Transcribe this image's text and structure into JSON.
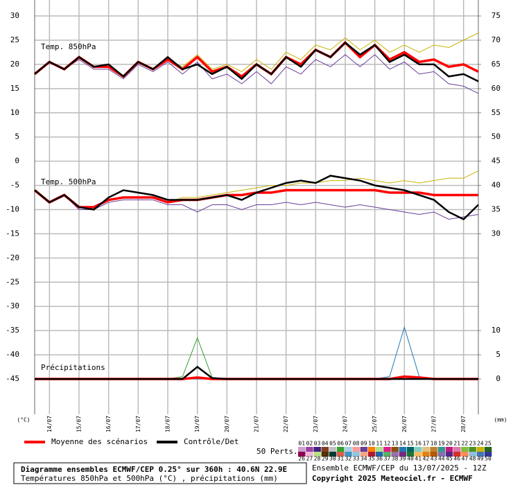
{
  "chart_data": {
    "type": "line",
    "x": [
      0,
      12,
      24,
      36,
      48,
      60,
      72,
      84,
      96,
      108,
      120,
      132,
      144,
      156,
      168,
      180,
      192,
      204,
      216,
      228,
      240,
      252,
      264,
      276,
      288,
      300,
      312,
      324,
      336,
      348,
      360
    ],
    "xlim": [
      0,
      360
    ],
    "xticks": [
      {
        "value": 12,
        "label": "14/07"
      },
      {
        "value": 36,
        "label": "15/07"
      },
      {
        "value": 60,
        "label": "16/07"
      },
      {
        "value": 84,
        "label": "17/07"
      },
      {
        "value": 108,
        "label": "18/07"
      },
      {
        "value": 132,
        "label": "19/07"
      },
      {
        "value": 156,
        "label": "20/07"
      },
      {
        "value": 180,
        "label": "21/07"
      },
      {
        "value": 204,
        "label": "22/07"
      },
      {
        "value": 228,
        "label": "23/07"
      },
      {
        "value": 252,
        "label": "24/07"
      },
      {
        "value": 276,
        "label": "25/07"
      },
      {
        "value": 300,
        "label": "26/07"
      },
      {
        "value": 324,
        "label": "27/07"
      },
      {
        "value": 348,
        "label": "28/07"
      }
    ],
    "ylim": [
      -52.3,
      33.3
    ],
    "yticks": [
      30,
      25,
      20,
      15,
      10,
      5,
      0,
      -5,
      -10,
      -15,
      -20,
      -25,
      -30,
      -35,
      -40,
      -45
    ],
    "y2lim": [
      -7.3,
      78.3
    ],
    "y2ticks": [
      75,
      70,
      65,
      60,
      55,
      50,
      45,
      40,
      35,
      30,
      10,
      5,
      0
    ],
    "ylabel": "(°C)",
    "y2label": "(mm)",
    "grid": true,
    "panels": [
      {
        "label": "Temp. 850hPa",
        "series": [
          {
            "name": "24",
            "color": "#c8b400",
            "values": [
              18,
              20.5,
              19,
              21.5,
              19.5,
              19.5,
              17.5,
              20.5,
              19,
              21,
              19.5,
              22,
              19,
              20,
              18.5,
              21,
              19,
              22.5,
              21,
              24,
              23,
              25.5,
              23,
              25,
              22.5,
              24,
              22.5,
              24,
              23.5,
              25,
              26.5
            ]
          },
          {
            "name": "09",
            "color": "#6a3d9a",
            "values": [
              18,
              20.5,
              19,
              21,
              19,
              19,
              17,
              20,
              18.5,
              20.5,
              18,
              20.5,
              17,
              18,
              16,
              18.5,
              16,
              19.5,
              18,
              21,
              19.5,
              22,
              19.5,
              22,
              19,
              20.5,
              18,
              18.5,
              16,
              15.5,
              14
            ]
          },
          {
            "name": "Moyenne des scénarios",
            "color": "#ff0000",
            "values": [
              18,
              20.5,
              19,
              21.5,
              19.5,
              19.5,
              17.5,
              20.5,
              19,
              21,
              19,
              21.5,
              18.5,
              19.5,
              17.5,
              20,
              18,
              21.5,
              20,
              23,
              21.5,
              24.5,
              21.5,
              24,
              21,
              22.5,
              20.5,
              21,
              19.5,
              20,
              18.5
            ]
          },
          {
            "name": "Contrôle/Det",
            "color": "#000000",
            "values": [
              18,
              20.5,
              19,
              21.5,
              19.5,
              20,
              17.5,
              20.5,
              19,
              21.5,
              19,
              20,
              18,
              19.5,
              17,
              20,
              18,
              21.5,
              19.5,
              23,
              21.5,
              24.5,
              22,
              24,
              20.5,
              22,
              20,
              20,
              17.5,
              18,
              16.5
            ]
          }
        ]
      },
      {
        "label": "Temp. 500hPa",
        "series": [
          {
            "name": "24",
            "color": "#c8b400",
            "values": [
              -6,
              -8.5,
              -7,
              -9.5,
              -9.5,
              -8,
              -7.5,
              -7.5,
              -7.5,
              -8.5,
              -7.5,
              -7.5,
              -7,
              -6.5,
              -6,
              -5.5,
              -5,
              -5,
              -4.5,
              -4.5,
              -4,
              -4,
              -3.5,
              -4,
              -4.5,
              -4,
              -4.5,
              -4,
              -3.5,
              -3.5,
              -2
            ]
          },
          {
            "name": "09",
            "color": "#6a3d9a",
            "values": [
              -6,
              -8.5,
              -7,
              -10,
              -10,
              -8.5,
              -8,
              -8,
              -8,
              -9,
              -9,
              -10.5,
              -9,
              -9,
              -10,
              -9,
              -9,
              -8.5,
              -9,
              -8.5,
              -9,
              -9.5,
              -9,
              -9.5,
              -10,
              -10.5,
              -11,
              -10.5,
              -12,
              -11.5,
              -11
            ]
          },
          {
            "name": "Moyenne des scénarios",
            "color": "#ff0000",
            "values": [
              -6,
              -8.5,
              -7,
              -9.5,
              -9.5,
              -8,
              -7.5,
              -7.5,
              -7.5,
              -8.5,
              -8,
              -8,
              -7.5,
              -7,
              -7,
              -6.5,
              -6.5,
              -6,
              -6,
              -6,
              -6,
              -6,
              -6,
              -6,
              -6.5,
              -6.5,
              -6.5,
              -7,
              -7,
              -7,
              -7
            ]
          },
          {
            "name": "Contrôle/Det",
            "color": "#000000",
            "values": [
              -6,
              -8.5,
              -7,
              -9.5,
              -10,
              -7.5,
              -6,
              -6.5,
              -7,
              -8,
              -8,
              -8,
              -7.5,
              -7,
              -8,
              -6.5,
              -5.5,
              -4.5,
              -4,
              -4.5,
              -3,
              -3.5,
              -4,
              -5,
              -5.5,
              -6,
              -7,
              -8,
              -10.5,
              -12,
              -9
            ]
          }
        ]
      },
      {
        "label": "Précipitations",
        "series": [
          {
            "name": "06",
            "color": "#33a02c",
            "axis": "y2",
            "values": [
              0,
              0,
              0,
              0,
              0,
              0,
              0,
              0,
              0,
              0,
              0.5,
              8.5,
              0.3,
              0,
              0,
              0,
              0,
              0,
              0,
              0,
              0,
              0,
              0,
              0,
              0,
              0,
              0,
              0,
              0,
              0,
              0
            ]
          },
          {
            "name": "14",
            "color": "#1f78b4",
            "axis": "y2",
            "values": [
              0,
              0,
              0,
              0,
              0,
              0,
              0,
              0,
              0,
              0,
              0,
              0,
              0,
              0,
              0,
              0,
              0,
              0,
              0,
              0,
              0,
              0,
              0,
              0,
              0.5,
              10.7,
              0.5,
              0,
              0,
              0,
              0
            ]
          },
          {
            "name": "Moyenne des scénarios",
            "color": "#ff0000",
            "axis": "y2",
            "values": [
              0,
              0,
              0,
              0,
              0,
              0,
              0,
              0,
              0,
              0,
              0,
              0.3,
              0,
              0,
              0,
              0,
              0,
              0,
              0,
              0,
              0,
              0,
              0,
              0,
              0,
              0.5,
              0.3,
              0,
              0,
              0,
              0
            ]
          },
          {
            "name": "Contrôle/Det",
            "color": "#000000",
            "axis": "y2",
            "values": [
              0,
              0,
              0,
              0,
              0,
              0,
              0,
              0,
              0,
              0,
              0,
              2.5,
              0.2,
              0,
              0,
              0,
              0,
              0,
              0,
              0,
              0,
              0,
              0,
              0,
              0,
              0,
              0,
              0,
              0,
              0,
              0
            ]
          }
        ]
      }
    ],
    "perturbations": {
      "label": "50 Perts.",
      "members": [
        {
          "name": "01",
          "color": "#c8a0c8"
        },
        {
          "name": "02",
          "color": "#a040a0"
        },
        {
          "name": "03",
          "color": "#402080"
        },
        {
          "name": "04",
          "color": "#804020"
        },
        {
          "name": "05",
          "color": "#c0c0c0"
        },
        {
          "name": "06",
          "color": "#33a02c"
        },
        {
          "name": "07",
          "color": "#a6cee3"
        },
        {
          "name": "08",
          "color": "#fb9a99"
        },
        {
          "name": "09",
          "color": "#6a3d9a"
        },
        {
          "name": "10",
          "color": "#ff7f00"
        },
        {
          "name": "11",
          "color": "#b2df8a"
        },
        {
          "name": "12",
          "color": "#e31a8c"
        },
        {
          "name": "13",
          "color": "#8c510a"
        },
        {
          "name": "14",
          "color": "#1f78b4"
        },
        {
          "name": "15",
          "color": "#01665e"
        },
        {
          "name": "16",
          "color": "#80cdc1"
        },
        {
          "name": "17",
          "color": "#dfc27d"
        },
        {
          "name": "18",
          "color": "#bf812d"
        },
        {
          "name": "19",
          "color": "#35978f"
        },
        {
          "name": "20",
          "color": "#c51b7d"
        },
        {
          "name": "21",
          "color": "#de77ae"
        },
        {
          "name": "22",
          "color": "#7fbc41"
        },
        {
          "name": "23",
          "color": "#4d9221"
        },
        {
          "name": "24",
          "color": "#c8b400"
        },
        {
          "name": "25",
          "color": "#276419"
        },
        {
          "name": "26",
          "color": "#8e0152"
        },
        {
          "name": "27",
          "color": "#f1b6da"
        },
        {
          "name": "28",
          "color": "#b8e186"
        },
        {
          "name": "29",
          "color": "#543005"
        },
        {
          "name": "30",
          "color": "#003c30"
        },
        {
          "name": "31",
          "color": "#d6604d"
        },
        {
          "name": "32",
          "color": "#4393c3"
        },
        {
          "name": "33",
          "color": "#92c5de"
        },
        {
          "name": "34",
          "color": "#f4a582"
        },
        {
          "name": "35",
          "color": "#b2182b"
        },
        {
          "name": "36",
          "color": "#2166ac"
        },
        {
          "name": "37",
          "color": "#5aae61"
        },
        {
          "name": "38",
          "color": "#9970ab"
        },
        {
          "name": "39",
          "color": "#762a83"
        },
        {
          "name": "40",
          "color": "#1b7837"
        },
        {
          "name": "41",
          "color": "#fdb863"
        },
        {
          "name": "42",
          "color": "#e08214"
        },
        {
          "name": "43",
          "color": "#b35806"
        },
        {
          "name": "44",
          "color": "#8073ac"
        },
        {
          "name": "45",
          "color": "#542788"
        },
        {
          "name": "46",
          "color": "#d73027"
        },
        {
          "name": "47",
          "color": "#fc8d59"
        },
        {
          "name": "48",
          "color": "#91bfdb"
        },
        {
          "name": "49",
          "color": "#4575b4"
        },
        {
          "name": "50",
          "color": "#313695"
        }
      ]
    },
    "info": {
      "title": "Diagramme ensembles ECMWF/CEP 0.25° sur 360h : 40.6N 22.9E",
      "subtitle": "Températures 850hPa et 500hPa (°C) , précipitations (mm)",
      "run": "Ensemble ECMWF/CEP du 13/07/2025 - 12Z",
      "copyright": "Copyright 2025 Meteociel.fr - ECMWF"
    }
  }
}
